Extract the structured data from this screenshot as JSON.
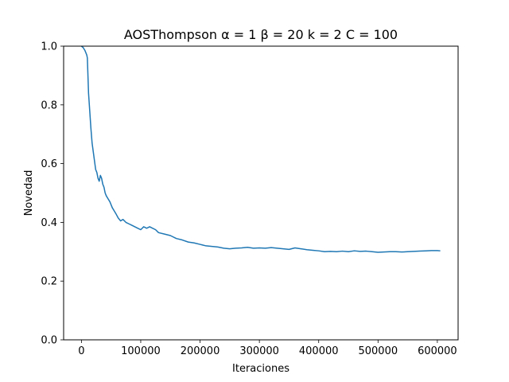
{
  "chart_data": {
    "type": "line",
    "title": "AOSThompson α = 1 β = 20 k = 2 C = 100",
    "xlabel": "Iteraciones",
    "ylabel": "Novedad",
    "xlim": [
      -30000,
      635000
    ],
    "ylim": [
      0.0,
      1.0
    ],
    "xticks": [
      0,
      100000,
      200000,
      300000,
      400000,
      500000,
      600000
    ],
    "xtick_labels": [
      "0",
      "100000",
      "200000",
      "300000",
      "400000",
      "500000",
      "600000"
    ],
    "yticks": [
      0.0,
      0.2,
      0.4,
      0.6,
      0.8,
      1.0
    ],
    "ytick_labels": [
      "0.0",
      "0.2",
      "0.4",
      "0.6",
      "0.8",
      "1.0"
    ],
    "grid": false,
    "series": [
      {
        "name": "Novedad",
        "color": "#1f77b4",
        "x": [
          0,
          3000,
          6000,
          9000,
          10000,
          12000,
          14000,
          16000,
          18000,
          20000,
          22000,
          24000,
          26000,
          28000,
          30000,
          32000,
          34000,
          36000,
          38000,
          40000,
          42000,
          45000,
          48000,
          52000,
          55000,
          58000,
          62000,
          66000,
          70000,
          75000,
          80000,
          85000,
          90000,
          95000,
          100000,
          105000,
          110000,
          115000,
          120000,
          125000,
          130000,
          140000,
          150000,
          160000,
          170000,
          180000,
          190000,
          200000,
          210000,
          220000,
          230000,
          240000,
          250000,
          260000,
          270000,
          280000,
          290000,
          300000,
          310000,
          320000,
          330000,
          340000,
          350000,
          360000,
          370000,
          380000,
          390000,
          400000,
          410000,
          420000,
          430000,
          440000,
          450000,
          460000,
          470000,
          480000,
          490000,
          500000,
          510000,
          520000,
          530000,
          540000,
          550000,
          560000,
          570000,
          580000,
          590000,
          600000,
          605000
        ],
        "y": [
          1.0,
          0.995,
          0.985,
          0.97,
          0.96,
          0.84,
          0.78,
          0.72,
          0.67,
          0.64,
          0.61,
          0.58,
          0.57,
          0.55,
          0.54,
          0.56,
          0.55,
          0.53,
          0.52,
          0.5,
          0.49,
          0.48,
          0.47,
          0.45,
          0.44,
          0.43,
          0.415,
          0.405,
          0.41,
          0.4,
          0.395,
          0.39,
          0.385,
          0.38,
          0.375,
          0.385,
          0.38,
          0.385,
          0.38,
          0.375,
          0.365,
          0.36,
          0.355,
          0.345,
          0.34,
          0.333,
          0.33,
          0.325,
          0.32,
          0.318,
          0.316,
          0.312,
          0.31,
          0.312,
          0.313,
          0.315,
          0.312,
          0.313,
          0.312,
          0.314,
          0.312,
          0.31,
          0.308,
          0.313,
          0.31,
          0.307,
          0.305,
          0.303,
          0.3,
          0.301,
          0.3,
          0.302,
          0.3,
          0.303,
          0.301,
          0.302,
          0.3,
          0.298,
          0.299,
          0.3,
          0.3,
          0.299,
          0.3,
          0.301,
          0.302,
          0.303,
          0.304,
          0.304,
          0.303
        ]
      }
    ]
  }
}
